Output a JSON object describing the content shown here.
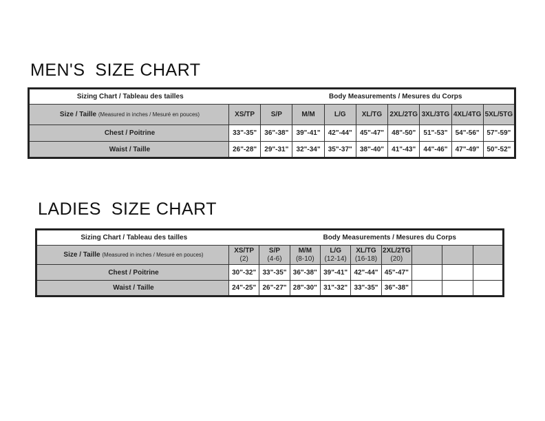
{
  "mens": {
    "heading": "MEN'S  SIZE CHART",
    "title": "Sizing Chart / Tableau des tailles",
    "subtitle": "Body Measurements / Mesures du Corps",
    "size_label": "Size / Taille",
    "size_note": "(Measured in inches / Mesuré en pouces)",
    "sizes": [
      "XS/TP",
      "S/P",
      "M/M",
      "L/G",
      "XL/TG",
      "2XL/2TG",
      "3XL/3TG",
      "4XL/4TG",
      "5XL/5TG"
    ],
    "rows": [
      {
        "label": "Chest / Poitrine",
        "values": [
          "33\"-35\"",
          "36\"-38\"",
          "39\"-41\"",
          "42\"-44\"",
          "45\"-47\"",
          "48\"-50\"",
          "51\"-53\"",
          "54\"-56\"",
          "57\"-59\""
        ]
      },
      {
        "label": "Waist / Taille",
        "values": [
          "26\"-28\"",
          "29\"-31\"",
          "32\"-34\"",
          "35\"-37\"",
          "38\"-40\"",
          "41\"-43\"",
          "44\"-46\"",
          "47\"-49\"",
          "50\"-52\""
        ]
      }
    ]
  },
  "ladies": {
    "heading": "LADIES  SIZE CHART",
    "title": "Sizing Chart / Tableau des tailles",
    "subtitle": "Body Measurements / Mesures du Corps",
    "size_label": "Size / Taille",
    "size_note": "(Measured in inches / Mesuré en pouces)",
    "sizes": [
      "XS/TP",
      "S/P",
      "M/M",
      "L/G",
      "XL/TG",
      "2XL/2TG",
      "",
      "",
      ""
    ],
    "size_sub": [
      "(2)",
      "(4-6)",
      "(8-10)",
      "(12-14)",
      "(16-18)",
      "(20)",
      "",
      "",
      ""
    ],
    "rows": [
      {
        "label": "Chest / Poitrine",
        "values": [
          "30\"-32\"",
          "33\"-35\"",
          "36\"-38\"",
          "39\"-41\"",
          "42\"-44\"",
          "45\"-47\"",
          "",
          "",
          ""
        ]
      },
      {
        "label": "Waist / Taille",
        "values": [
          "24\"-25\"",
          "26\"-27\"",
          "28\"-30\"",
          "31\"-32\"",
          "33\"-35\"",
          "36\"-38\"",
          "",
          "",
          ""
        ]
      }
    ]
  }
}
